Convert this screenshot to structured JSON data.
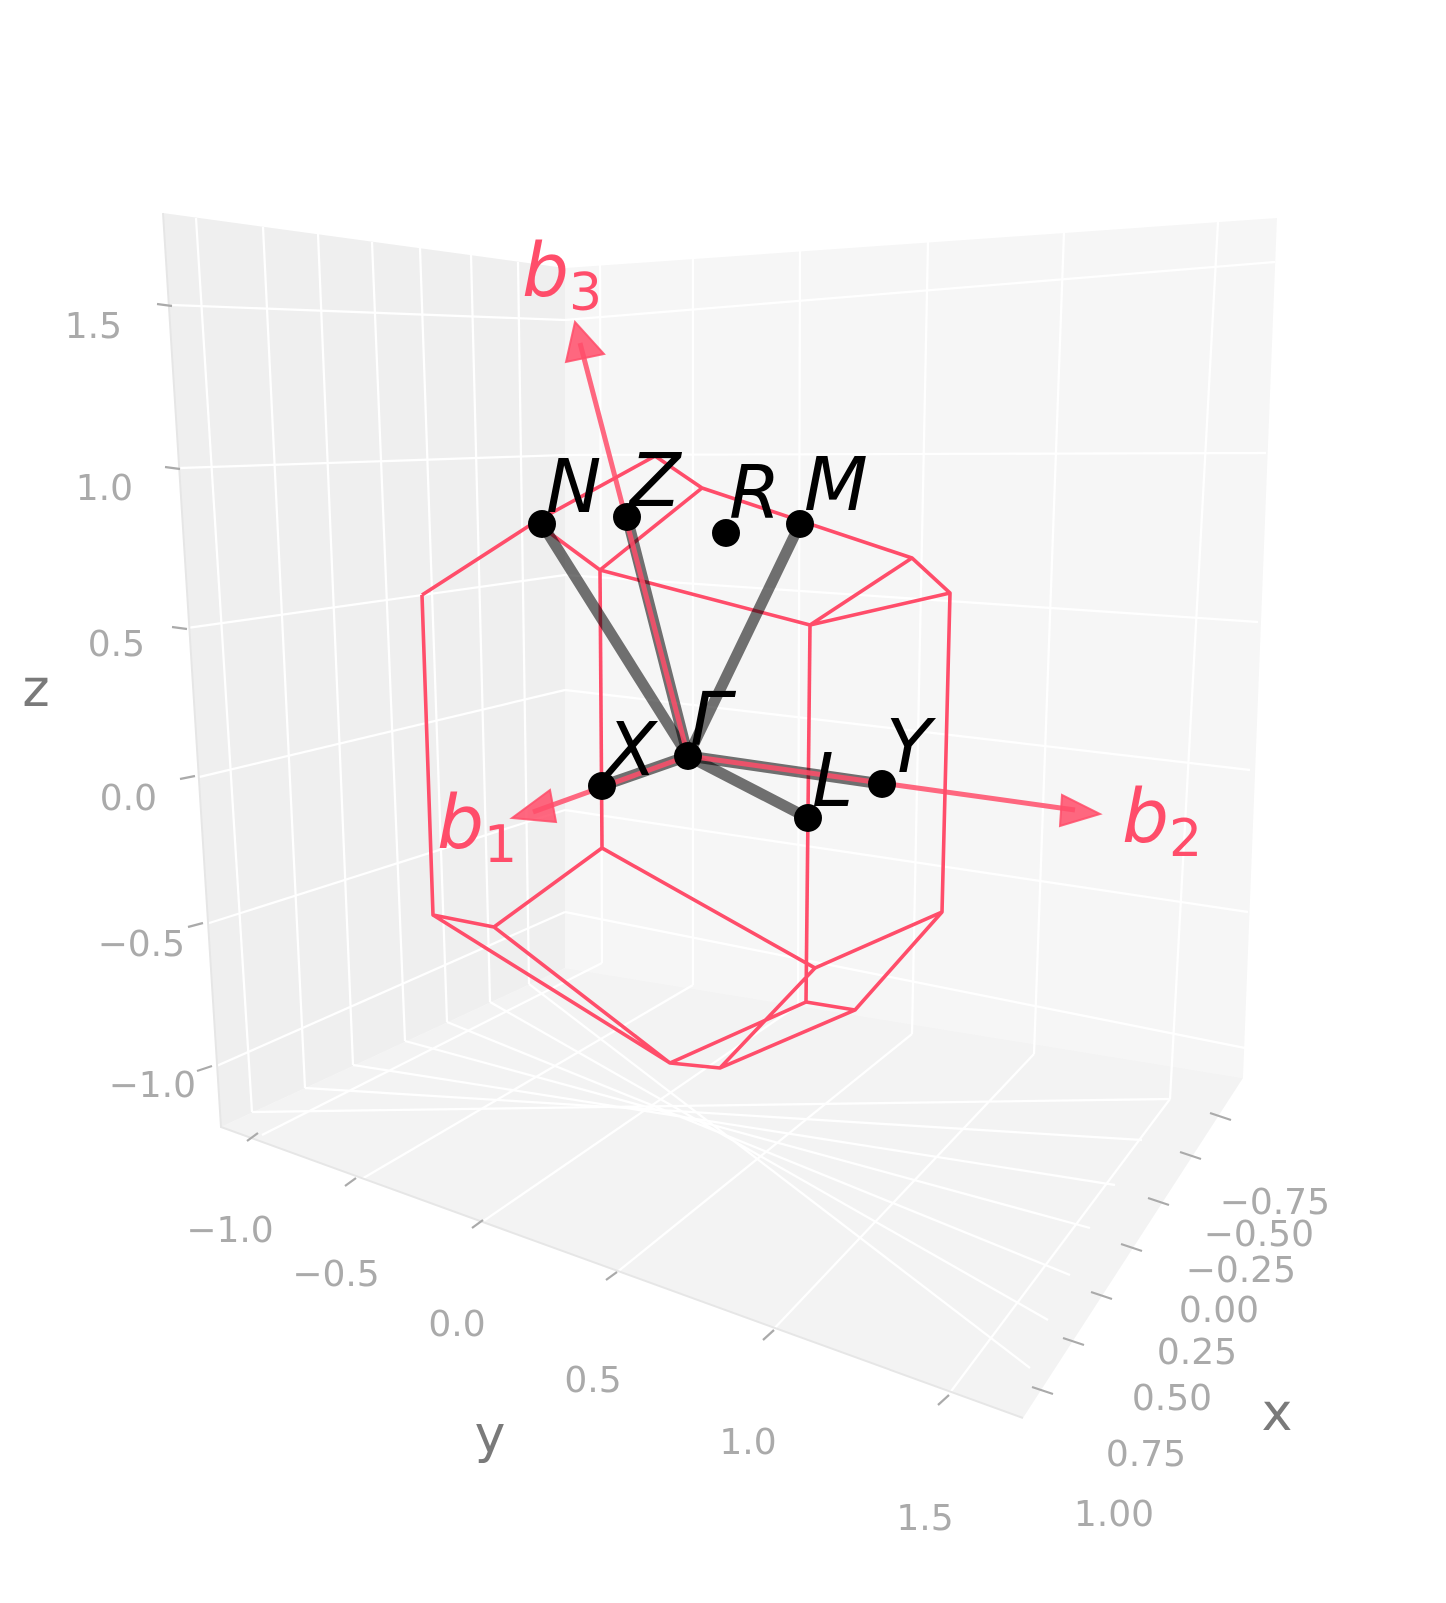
{
  "figure": {
    "axes": {
      "x": {
        "label": "x",
        "ticks": [
          "−0.75",
          "−0.50",
          "−0.25",
          "0.00",
          "0.25",
          "0.50",
          "0.75",
          "1.00"
        ]
      },
      "y": {
        "label": "y",
        "ticks": [
          "−1.0",
          "−0.5",
          "0.0",
          "0.5",
          "1.0",
          "1.5"
        ]
      },
      "z": {
        "label": "z",
        "ticks": [
          "1.5",
          "1.0",
          "0.5",
          "0.0",
          "−0.5",
          "−1.0"
        ]
      }
    },
    "kpoints": [
      "N",
      "Z",
      "R",
      "M",
      "Γ",
      "X",
      "L",
      "Y"
    ],
    "vectors": [
      {
        "base": "b",
        "sub": "1"
      },
      {
        "base": "b",
        "sub": "2"
      },
      {
        "base": "b",
        "sub": "3"
      }
    ],
    "colors": {
      "brillouin_zone": "#ff4d6a",
      "vectors": "#ff4d6a",
      "path": "#000000",
      "pane_left": "#efefef",
      "pane_right": "#f6f6f6",
      "pane_floor": "#f3f3f3",
      "grid": "#ffffff",
      "tick_text": "#aaaaaa",
      "axis_label": "#7a7a7a"
    }
  }
}
